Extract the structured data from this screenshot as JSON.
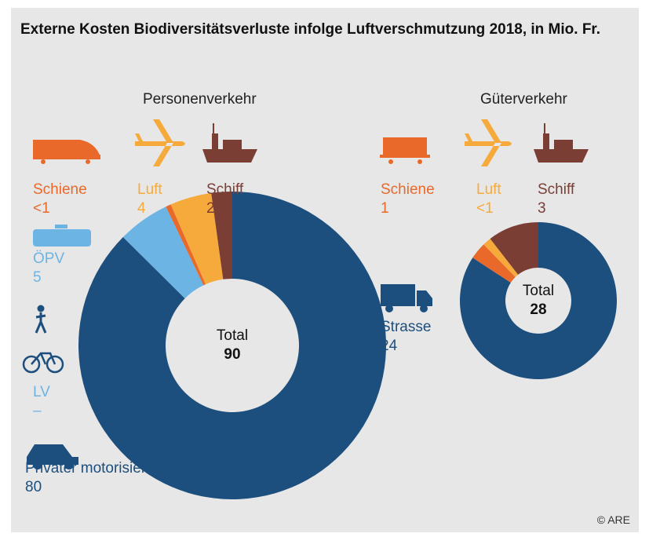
{
  "title": "Externe Kosten Biodiversitätsverluste infolge Luftverschmutzung 2018, in Mio. Fr.",
  "source": "© ARE",
  "chart_data": [
    {
      "type": "pie",
      "title": "Personenverkehr",
      "total_label": "Total",
      "total": 90,
      "categories": [
        "Privater motorisierter Personenverkehr",
        "LV",
        "ÖPV",
        "Schiene",
        "Luft",
        "Schiff"
      ],
      "values": [
        80,
        0,
        5,
        0.5,
        4,
        2
      ],
      "value_labels": [
        "80",
        "–",
        "5",
        "<1",
        "4",
        "2"
      ],
      "colors": [
        "#1d4f7e",
        "#6cb4e4",
        "#6cb4e4",
        "#e8692a",
        "#f6aa3c",
        "#7b3e34"
      ]
    },
    {
      "type": "pie",
      "title": "Güterverkehr",
      "total_label": "Total",
      "total": 28,
      "categories": [
        "Strasse",
        "Schiene",
        "Luft",
        "Schiff"
      ],
      "values": [
        24,
        1,
        0.5,
        3
      ],
      "value_labels": [
        "24",
        "1",
        "<1",
        "3"
      ],
      "colors": [
        "#1d4f7e",
        "#e8692a",
        "#f6aa3c",
        "#7b3e34"
      ]
    }
  ]
}
